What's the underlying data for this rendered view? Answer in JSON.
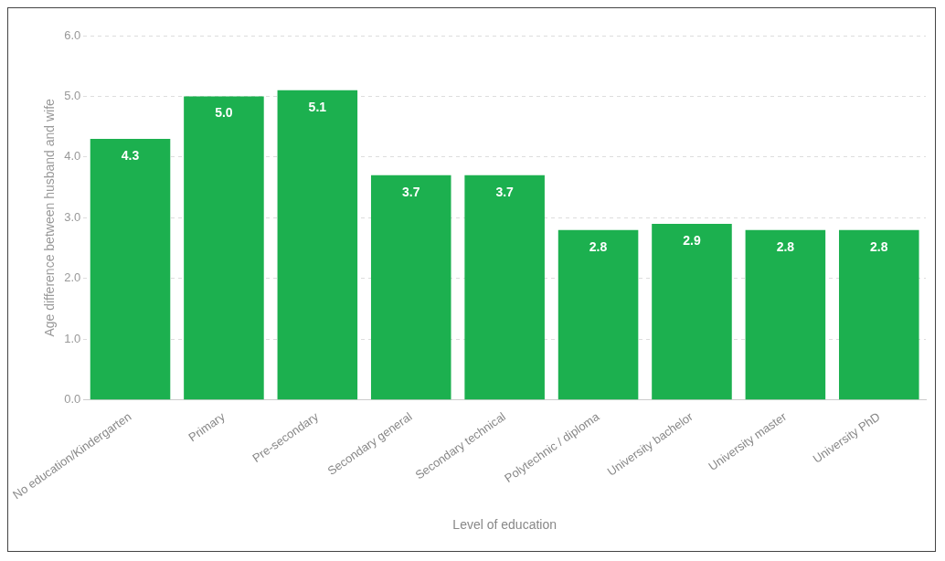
{
  "chart_data": {
    "type": "bar",
    "xlabel": "Level of education",
    "ylabel": "Age difference between husband and wife",
    "categories": [
      "No education/Kindergarten",
      "Primary",
      "Pre-secondary",
      "Secondary general",
      "Secondary technical",
      "Polytechnic / diploma",
      "University bachelor",
      "University master",
      "University PhD"
    ],
    "values": [
      4.3,
      5.0,
      5.1,
      3.7,
      3.7,
      2.8,
      2.9,
      2.8,
      2.8
    ],
    "value_labels": [
      "4.3",
      "5.0",
      "5.1",
      "3.7",
      "3.7",
      "2.8",
      "2.9",
      "2.8",
      "2.8"
    ],
    "color": "#1cb04f",
    "ylim": [
      0,
      6
    ],
    "yticks": [
      {
        "value": 0,
        "label": "0.0"
      },
      {
        "value": 1,
        "label": "1.0"
      },
      {
        "value": 2,
        "label": "2.0"
      },
      {
        "value": 3,
        "label": "3.0"
      },
      {
        "value": 4,
        "label": "4.0"
      },
      {
        "value": 5,
        "label": "5.0"
      },
      {
        "value": 6,
        "label": "6.0"
      }
    ],
    "grid": "y",
    "legend": false
  }
}
